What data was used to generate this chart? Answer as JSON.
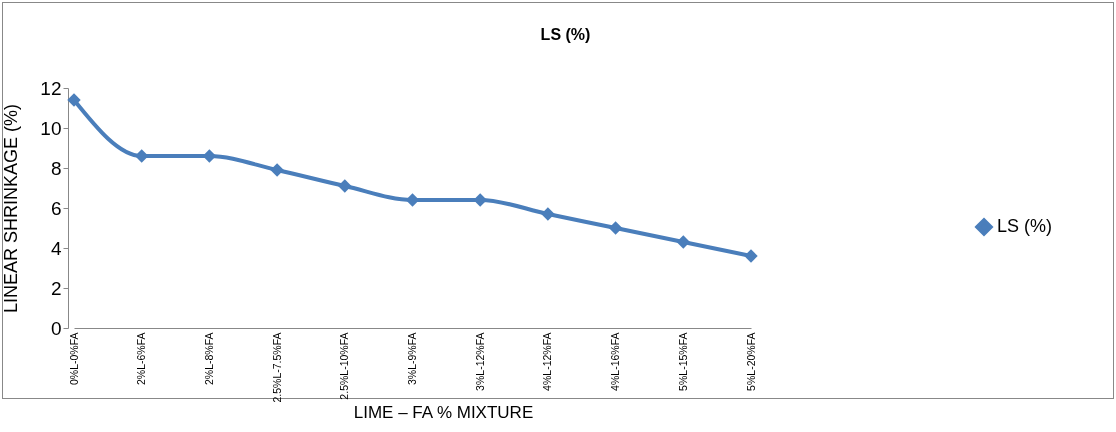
{
  "chart_data": {
    "type": "line",
    "title": "LS (%)",
    "xlabel": "LIME – FA % MIXTURE",
    "ylabel": "LINEAR SHRINKAGE (%)",
    "categories": [
      "0%L-0%FA",
      "2%L-6%FA",
      "2%L-8%FA",
      "2.5%L-7.5%FA",
      "2.5%L-10%FA",
      "3%L-9%FA",
      "3%L-12%FA",
      "4%L-12%FA",
      "4%L-16%FA",
      "5%L-15%FA",
      "5%L-20%FA"
    ],
    "series": [
      {
        "name": "LS (%)",
        "color": "#4a7ebb",
        "values": [
          11.4,
          8.6,
          8.6,
          7.9,
          7.1,
          6.4,
          6.4,
          5.7,
          5.0,
          4.3,
          3.6
        ]
      }
    ],
    "ylim": [
      0,
      12
    ],
    "yticks": [
      0,
      2,
      4,
      6,
      8,
      10,
      12
    ],
    "grid": false,
    "legend": "right",
    "marker": "diamond",
    "line_style": "solid"
  }
}
